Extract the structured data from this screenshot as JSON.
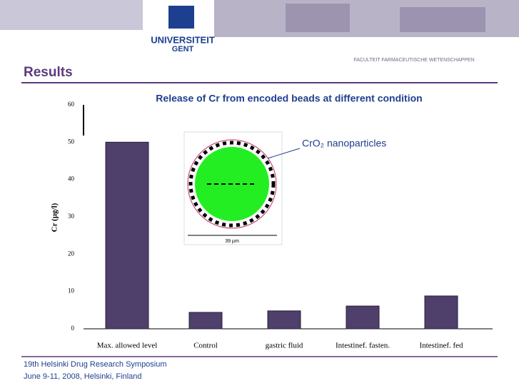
{
  "slide": {
    "logo_top": "UNIVERSITEIT",
    "logo_bottom": "GENT",
    "faculty": "FACULTEIT FARMACEUTISCHE WETENSCHAPPEN",
    "heading": "Results",
    "annotation": "CrO₂ nanoparticles",
    "scale_label": "39 µm",
    "footer": [
      "19th Helsinki Drug Research  Symposium",
      "June 9-11, 2008, Helsinki, Finland"
    ]
  },
  "chart_data": {
    "type": "bar",
    "title": "Release of Cr from encoded beads at different condition",
    "y_label": "Cr (µg/l)",
    "categories": [
      "Max. allowed level",
      "Control",
      "gastric fluid",
      "Intestinef. fasten.",
      "Intestinef. fed"
    ],
    "values": [
      50,
      4.4,
      4.8,
      6.1,
      8.8
    ],
    "color": "#4f3f6b",
    "ylim": [
      0,
      60
    ],
    "yticks": [
      0,
      10,
      20,
      30,
      40,
      50,
      60
    ],
    "grid": false
  }
}
